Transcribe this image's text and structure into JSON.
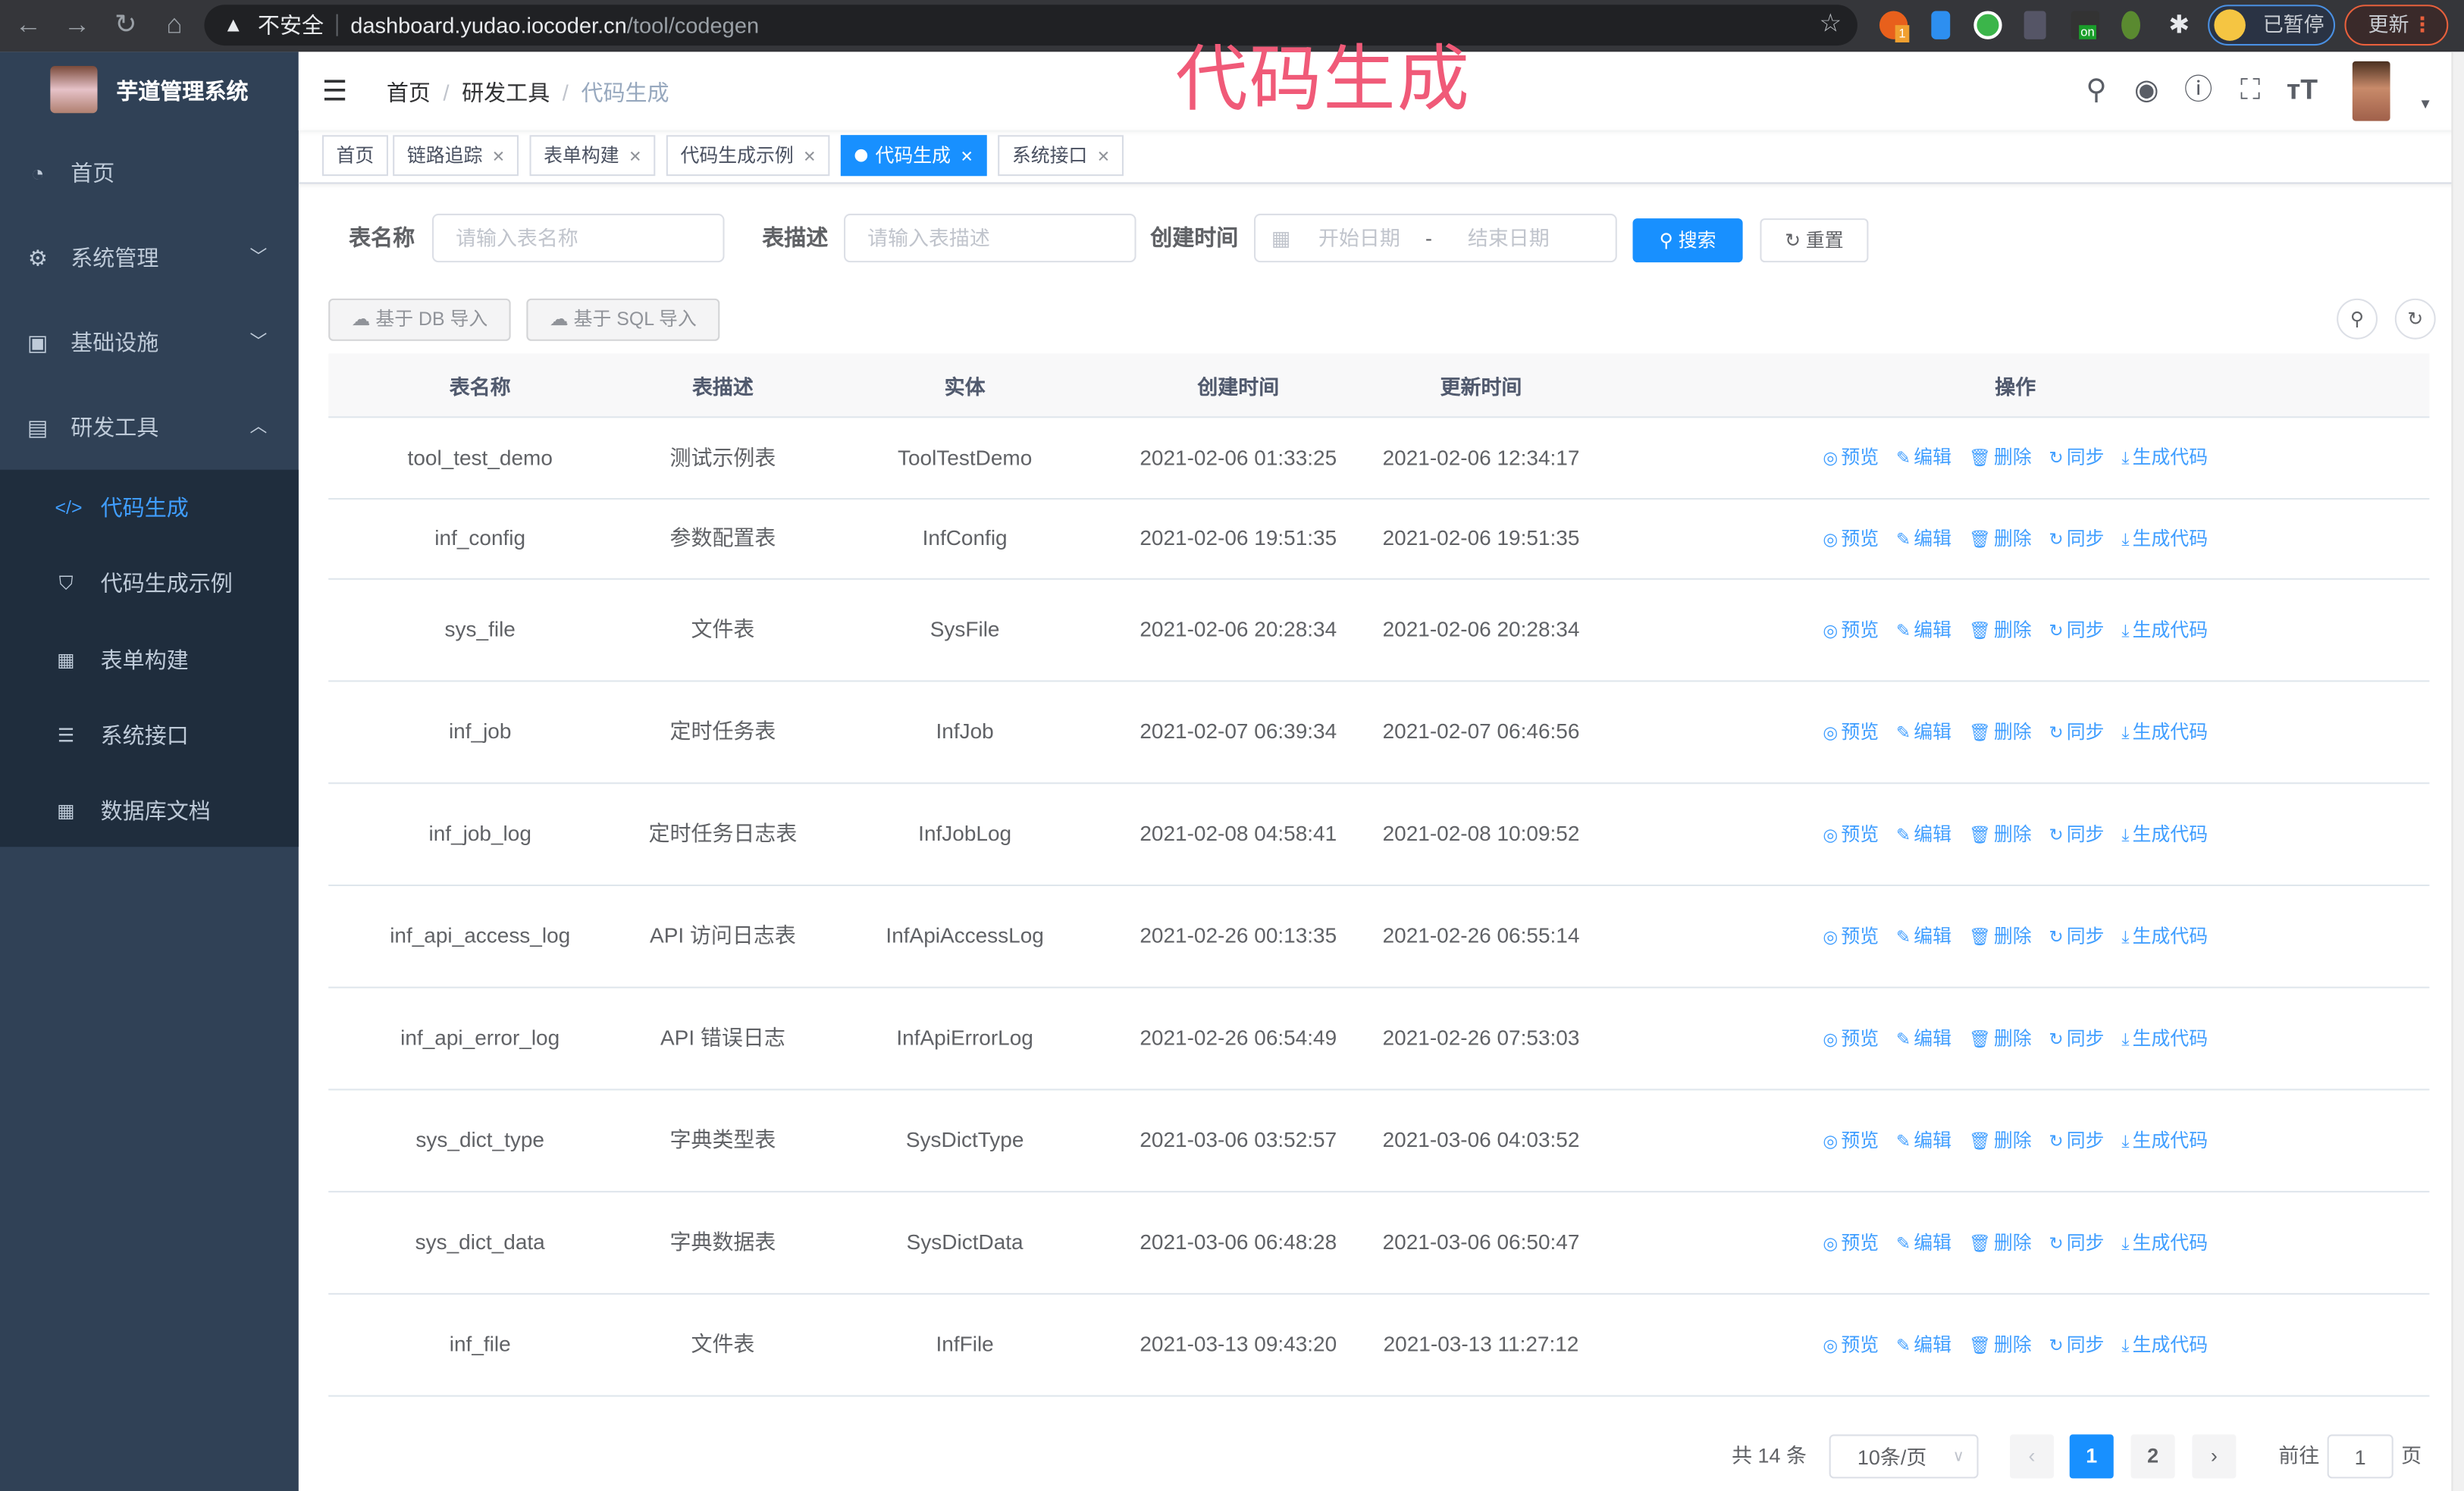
{
  "browser": {
    "security_label": "不安全",
    "url_host": "dashboard.yudao.iocoder.cn",
    "url_path": "/tool/codegen",
    "profile_label": "已暂停",
    "update_label": "更新",
    "extension_badge": "1",
    "extension_on_badge": "on"
  },
  "overlay_title": "代码生成",
  "sidebar": {
    "app_title": "芋道管理系统",
    "items": [
      {
        "label": "首页",
        "icon": "dashboard-icon"
      },
      {
        "label": "系统管理",
        "icon": "gear-icon",
        "expandable": true
      },
      {
        "label": "基础设施",
        "icon": "monitor-icon",
        "expandable": true
      },
      {
        "label": "研发工具",
        "icon": "toolbox-icon",
        "expanded": true
      }
    ],
    "sub_items": [
      {
        "label": "代码生成",
        "icon": "code-icon",
        "active": true
      },
      {
        "label": "代码生成示例",
        "icon": "shield-icon"
      },
      {
        "label": "表单构建",
        "icon": "form-icon"
      },
      {
        "label": "系统接口",
        "icon": "sliders-icon"
      },
      {
        "label": "数据库文档",
        "icon": "table-icon"
      }
    ]
  },
  "header": {
    "breadcrumb": [
      "首页",
      "研发工具",
      "代码生成"
    ]
  },
  "tags": [
    {
      "label": "首页",
      "closable": false
    },
    {
      "label": "链路追踪",
      "closable": true
    },
    {
      "label": "表单构建",
      "closable": true
    },
    {
      "label": "代码生成示例",
      "closable": true
    },
    {
      "label": "代码生成",
      "closable": true,
      "active": true
    },
    {
      "label": "系统接口",
      "closable": true
    }
  ],
  "search": {
    "table_name_label": "表名称",
    "table_name_placeholder": "请输入表名称",
    "table_comment_label": "表描述",
    "table_comment_placeholder": "请输入表描述",
    "create_time_label": "创建时间",
    "start_placeholder": "开始日期",
    "range_separator": "-",
    "end_placeholder": "结束日期",
    "search_label": "搜索",
    "reset_label": "重置"
  },
  "toolbar": {
    "import_db_label": "基于 DB 导入",
    "import_sql_label": "基于 SQL 导入"
  },
  "table": {
    "columns": [
      "表名称",
      "表描述",
      "实体",
      "创建时间",
      "更新时间",
      "操作"
    ],
    "actions": [
      "预览",
      "编辑",
      "删除",
      "同步",
      "生成代码"
    ],
    "rows": [
      [
        "tool_test_demo",
        "测试示例表",
        "ToolTestDemo",
        "2021-02-06 01:33:25",
        "2021-02-06 12:34:17"
      ],
      [
        "inf_config",
        "参数配置表",
        "InfConfig",
        "2021-02-06 19:51:35",
        "2021-02-06 19:51:35"
      ],
      [
        "sys_file",
        "文件表",
        "SysFile",
        "2021-02-06 20:28:34",
        "2021-02-06 20:28:34"
      ],
      [
        "inf_job",
        "定时任务表",
        "InfJob",
        "2021-02-07 06:39:34",
        "2021-02-07 06:46:56"
      ],
      [
        "inf_job_log",
        "定时任务日志表",
        "InfJobLog",
        "2021-02-08 04:58:41",
        "2021-02-08 10:09:52"
      ],
      [
        "inf_api_access_log",
        "API 访问日志表",
        "InfApiAccessLog",
        "2021-02-26 00:13:35",
        "2021-02-26 06:55:14"
      ],
      [
        "inf_api_error_log",
        "API 错误日志",
        "InfApiErrorLog",
        "2021-02-26 06:54:49",
        "2021-02-26 07:53:03"
      ],
      [
        "sys_dict_type",
        "字典类型表",
        "SysDictType",
        "2021-03-06 03:52:57",
        "2021-03-06 04:03:52"
      ],
      [
        "sys_dict_data",
        "字典数据表",
        "SysDictData",
        "2021-03-06 06:48:28",
        "2021-03-06 06:50:47"
      ],
      [
        "inf_file",
        "文件表",
        "InfFile",
        "2021-03-13 09:43:20",
        "2021-03-13 11:27:12"
      ]
    ]
  },
  "pagination": {
    "total_label": "共 14 条",
    "page_size": "10条/页",
    "pages": [
      "1",
      "2"
    ],
    "current_page": 1,
    "goto_label": "前往",
    "goto_value": "1",
    "page_suffix": "页"
  },
  "colors": {
    "primary": "#1890ff",
    "sidebar": "#304156",
    "submenu": "#1f2d3d",
    "link": "#409eff",
    "overlay": "#f05a78"
  }
}
